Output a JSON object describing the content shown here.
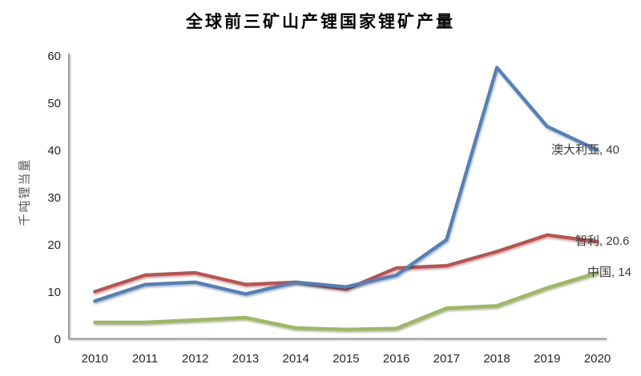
{
  "chart_data": {
    "type": "line",
    "title": "全球前三矿山产锂国家锂矿产量",
    "ylabel": "千吨锂当量",
    "xlabel": "",
    "ylim": [
      0,
      60
    ],
    "yticks": [
      0,
      10,
      20,
      30,
      40,
      50,
      60
    ],
    "grid": false,
    "legend_position": "end-of-line-labels",
    "categories": [
      "2010",
      "2011",
      "2012",
      "2013",
      "2014",
      "2015",
      "2016",
      "2017",
      "2018",
      "2019",
      "2020"
    ],
    "series": [
      {
        "name": "澳大利亚",
        "end_label": "澳大利亚, 40",
        "color": "#4F81BD",
        "values": [
          8,
          11.5,
          12,
          9.5,
          12,
          11,
          13.5,
          21,
          57.5,
          45,
          40
        ]
      },
      {
        "name": "智利",
        "end_label": "智利, 20.6",
        "color": "#C0504D",
        "values": [
          10,
          13.5,
          14,
          11.5,
          12,
          10.5,
          15,
          15.5,
          18.5,
          22,
          20.6
        ]
      },
      {
        "name": "中国",
        "end_label": "中国, 14",
        "color": "#9BBB59",
        "values": [
          3.5,
          3.5,
          4,
          4.5,
          2.3,
          2,
          2.2,
          6.5,
          7,
          10.8,
          14
        ]
      }
    ]
  }
}
